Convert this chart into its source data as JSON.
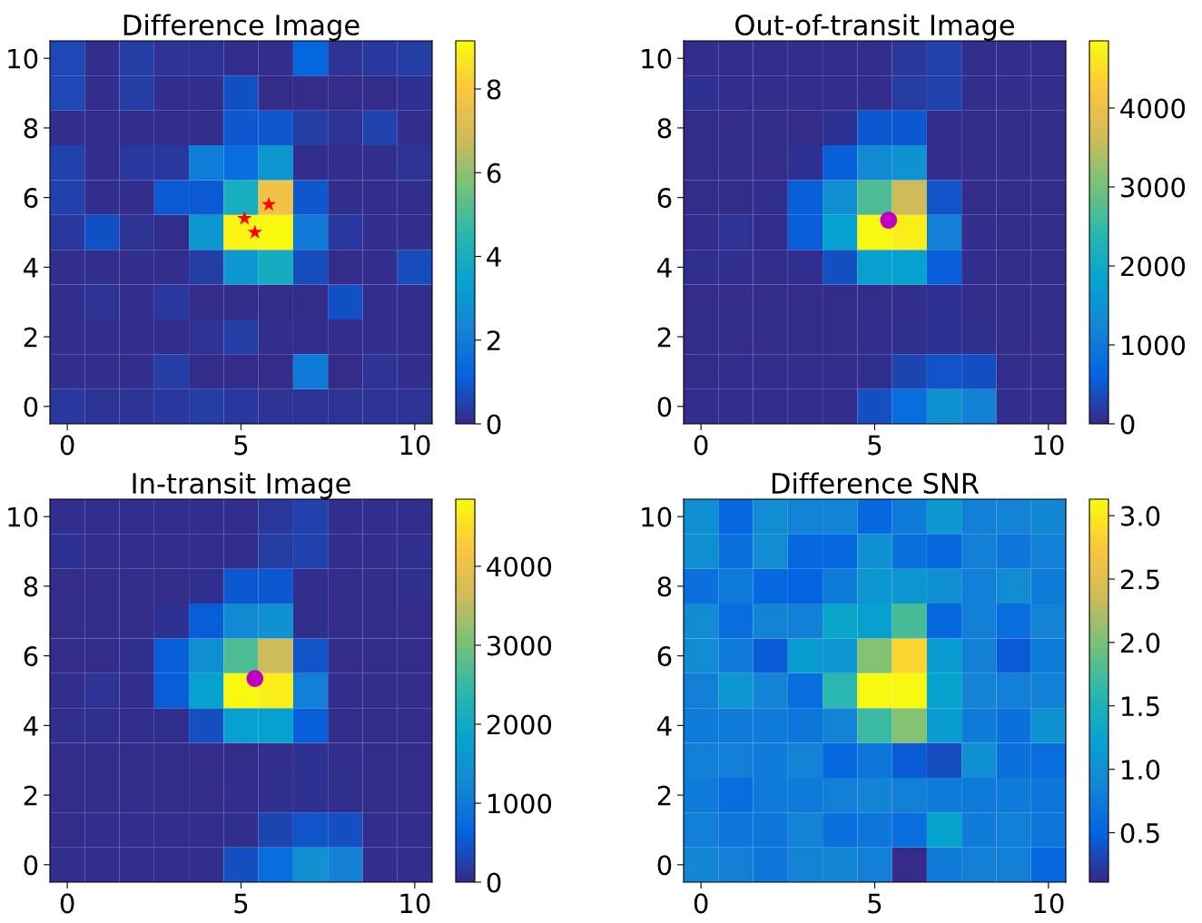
{
  "chart_data": [
    {
      "type": "heatmap",
      "title": "Difference Image",
      "xlim": [
        -0.5,
        10.5
      ],
      "xticks": [
        0,
        5,
        10
      ],
      "ylim": [
        -0.5,
        10.5
      ],
      "yticks": [
        0,
        2,
        4,
        6,
        8,
        10
      ],
      "clim": [
        0,
        9.15
      ],
      "cticks": [
        0,
        2,
        4,
        6,
        8
      ],
      "colors": [
        "#352a87",
        "#0363e1",
        "#1485d4",
        "#06a3cf",
        "#2cb8ad",
        "#78c276",
        "#d1bb58",
        "#fcc63d",
        "#f9fb0e"
      ],
      "cells": [
        [
          0.6,
          0.1,
          0.4,
          0.2,
          0.2,
          0.1,
          0.1,
          1.3,
          0.2,
          0.3,
          0.4
        ],
        [
          0.6,
          0.1,
          0.4,
          0.1,
          0.1,
          0.8,
          0.05,
          0.05,
          0.05,
          0.05,
          0.15
        ],
        [
          0.1,
          0.1,
          0.1,
          0.1,
          0.1,
          0.9,
          0.9,
          0.4,
          0.2,
          0.5,
          0.1
        ],
        [
          0.5,
          0.1,
          0.3,
          0.3,
          2.0,
          1.5,
          3.0,
          0.1,
          0.1,
          0.1,
          0.2
        ],
        [
          0.5,
          0.1,
          0.1,
          1.0,
          1.0,
          4.0,
          7.7,
          0.9,
          0.1,
          0.1,
          0.1
        ],
        [
          0.3,
          0.8,
          0.2,
          0.1,
          3.0,
          9.0,
          9.1,
          1.9,
          0.3,
          0.1,
          0.1
        ],
        [
          0.1,
          0.1,
          0.1,
          0.1,
          0.4,
          3.0,
          3.9,
          0.7,
          0.05,
          0.1,
          0.7
        ],
        [
          0.1,
          0.2,
          0.1,
          0.3,
          0.05,
          0.05,
          0.05,
          0.05,
          0.8,
          0.1,
          0.1
        ],
        [
          0.1,
          0.1,
          0.1,
          0.1,
          0.2,
          0.4,
          0.1,
          0.1,
          0.1,
          0.1,
          0.1
        ],
        [
          0.1,
          0.1,
          0.1,
          0.4,
          0.05,
          0.05,
          0.05,
          1.9,
          0.05,
          0.2,
          0.1
        ],
        [
          0.3,
          0.2,
          0.2,
          0.3,
          0.4,
          0.3,
          0.2,
          0.2,
          0.2,
          0.2,
          0.2
        ]
      ],
      "series": [
        {
          "type": "scatter",
          "x": [
            5.1,
            5.4,
            5.8
          ],
          "values": [
            5.4,
            5.0,
            5.8
          ],
          "color": "#ff0000",
          "marker": "star"
        }
      ]
    },
    {
      "type": "heatmap",
      "title": "Out-of-transit Image",
      "xlim": [
        -0.5,
        10.5
      ],
      "xticks": [
        0,
        5,
        10
      ],
      "ylim": [
        -0.5,
        10.5
      ],
      "yticks": [
        0,
        2,
        4,
        6,
        8,
        10
      ],
      "clim": [
        0,
        4850
      ],
      "cticks": [
        0,
        1000,
        2000,
        3000,
        4000
      ],
      "colors": [
        "#352a87",
        "#0363e1",
        "#1485d4",
        "#06a3cf",
        "#2cb8ad",
        "#78c276",
        "#d1bb58",
        "#fcc63d",
        "#f9fb0e"
      ],
      "cells": [
        [
          50,
          50,
          50,
          50,
          50,
          50,
          150,
          250,
          50,
          50,
          50
        ],
        [
          80,
          50,
          50,
          50,
          50,
          50,
          200,
          250,
          50,
          50,
          50
        ],
        [
          30,
          30,
          30,
          30,
          80,
          500,
          500,
          50,
          30,
          30,
          30
        ],
        [
          30,
          30,
          30,
          80,
          550,
          1300,
          1450,
          50,
          30,
          30,
          30
        ],
        [
          30,
          30,
          60,
          550,
          1400,
          2700,
          3600,
          450,
          30,
          30,
          30
        ],
        [
          40,
          100,
          50,
          550,
          1800,
          4800,
          4700,
          1100,
          50,
          30,
          30
        ],
        [
          60,
          60,
          40,
          60,
          400,
          1750,
          1800,
          550,
          40,
          30,
          30
        ],
        [
          30,
          30,
          30,
          30,
          30,
          30,
          50,
          80,
          30,
          30,
          30
        ],
        [
          30,
          30,
          30,
          30,
          30,
          40,
          60,
          80,
          60,
          30,
          30
        ],
        [
          30,
          50,
          40,
          40,
          40,
          60,
          300,
          450,
          400,
          50,
          40
        ],
        [
          50,
          40,
          40,
          40,
          40,
          400,
          800,
          1450,
          1150,
          50,
          40
        ]
      ],
      "series": [
        {
          "type": "scatter",
          "x": [
            5.4
          ],
          "values": [
            5.35
          ],
          "color": "#c000c0",
          "marker": "circle"
        }
      ]
    },
    {
      "type": "heatmap",
      "title": "In-transit Image",
      "xlim": [
        -0.5,
        10.5
      ],
      "xticks": [
        0,
        5,
        10
      ],
      "ylim": [
        -0.5,
        10.5
      ],
      "yticks": [
        0,
        2,
        4,
        6,
        8,
        10
      ],
      "clim": [
        0,
        4850
      ],
      "cticks": [
        0,
        1000,
        2000,
        3000,
        4000
      ],
      "colors": [
        "#352a87",
        "#0363e1",
        "#1485d4",
        "#06a3cf",
        "#2cb8ad",
        "#78c276",
        "#d1bb58",
        "#fcc63d",
        "#f9fb0e"
      ],
      "cells": [
        [
          40,
          40,
          40,
          40,
          40,
          40,
          150,
          250,
          40,
          40,
          40
        ],
        [
          80,
          40,
          40,
          40,
          50,
          50,
          200,
          250,
          40,
          40,
          70
        ],
        [
          30,
          30,
          30,
          30,
          70,
          500,
          500,
          40,
          30,
          30,
          60
        ],
        [
          30,
          30,
          30,
          80,
          550,
          1300,
          1450,
          50,
          30,
          30,
          30
        ],
        [
          30,
          30,
          60,
          550,
          1400,
          2700,
          3600,
          450,
          30,
          30,
          30
        ],
        [
          40,
          100,
          50,
          550,
          1800,
          4800,
          4700,
          1100,
          50,
          30,
          30
        ],
        [
          60,
          60,
          40,
          60,
          400,
          1750,
          1800,
          550,
          40,
          30,
          30
        ],
        [
          30,
          30,
          30,
          30,
          30,
          30,
          50,
          80,
          40,
          30,
          30
        ],
        [
          30,
          30,
          30,
          30,
          30,
          40,
          60,
          80,
          60,
          30,
          30
        ],
        [
          30,
          40,
          40,
          40,
          40,
          60,
          300,
          450,
          400,
          50,
          40
        ],
        [
          50,
          40,
          40,
          40,
          40,
          400,
          800,
          1450,
          1150,
          50,
          40
        ]
      ],
      "series": [
        {
          "type": "scatter",
          "x": [
            5.4
          ],
          "values": [
            5.35
          ],
          "color": "#c000c0",
          "marker": "circle"
        }
      ]
    },
    {
      "type": "heatmap",
      "title": "Difference SNR",
      "xlim": [
        -0.5,
        10.5
      ],
      "xticks": [
        0,
        5,
        10
      ],
      "ylim": [
        -0.5,
        10.5
      ],
      "yticks": [
        0,
        2,
        4,
        6,
        8,
        10
      ],
      "clim": [
        0.11,
        3.13
      ],
      "cticks": [
        {
          "value": 0.5,
          "label": "0.5"
        },
        {
          "value": 1,
          "label": "1.0"
        },
        {
          "value": 1.5,
          "label": "1.5"
        },
        {
          "value": 2,
          "label": "2.0"
        },
        {
          "value": 2.5,
          "label": "2.5"
        },
        {
          "value": 3,
          "label": "3.0"
        }
      ],
      "colors": [
        "#352a87",
        "#0363e1",
        "#1485d4",
        "#06a3cf",
        "#2cb8ad",
        "#78c276",
        "#d1bb58",
        "#fcc63d",
        "#f9fb0e"
      ],
      "cells": [
        [
          1.0,
          0.55,
          0.95,
          0.85,
          0.85,
          0.55,
          0.75,
          1.1,
          0.8,
          0.85,
          0.9
        ],
        [
          1.0,
          0.65,
          0.95,
          0.55,
          0.55,
          1.0,
          0.65,
          0.55,
          0.8,
          0.7,
          0.8
        ],
        [
          0.65,
          0.75,
          0.55,
          0.5,
          0.75,
          1.1,
          1.1,
          1.0,
          0.8,
          0.95,
          0.75
        ],
        [
          0.95,
          0.6,
          0.85,
          0.8,
          1.3,
          1.2,
          1.75,
          0.55,
          0.8,
          0.6,
          0.85
        ],
        [
          0.95,
          0.75,
          0.45,
          1.15,
          1.1,
          2.05,
          2.85,
          1.15,
          0.8,
          0.45,
          0.75
        ],
        [
          0.8,
          1.1,
          0.85,
          0.6,
          1.6,
          3.1,
          3.1,
          1.25,
          0.85,
          0.8,
          0.8
        ],
        [
          0.75,
          0.75,
          0.75,
          0.7,
          0.85,
          1.7,
          2.05,
          1.15,
          0.75,
          0.65,
          1.0
        ],
        [
          0.8,
          0.8,
          0.75,
          0.85,
          0.55,
          0.7,
          0.45,
          0.35,
          1.0,
          0.65,
          0.6
        ],
        [
          0.75,
          0.6,
          0.75,
          0.75,
          0.8,
          0.85,
          0.8,
          0.75,
          0.75,
          0.75,
          0.7
        ],
        [
          0.8,
          0.7,
          0.7,
          0.85,
          0.65,
          0.7,
          0.6,
          1.25,
          0.75,
          0.8,
          0.7
        ],
        [
          0.9,
          0.8,
          0.7,
          0.85,
          0.9,
          0.8,
          0.12,
          0.75,
          0.8,
          0.8,
          0.55
        ]
      ]
    }
  ]
}
